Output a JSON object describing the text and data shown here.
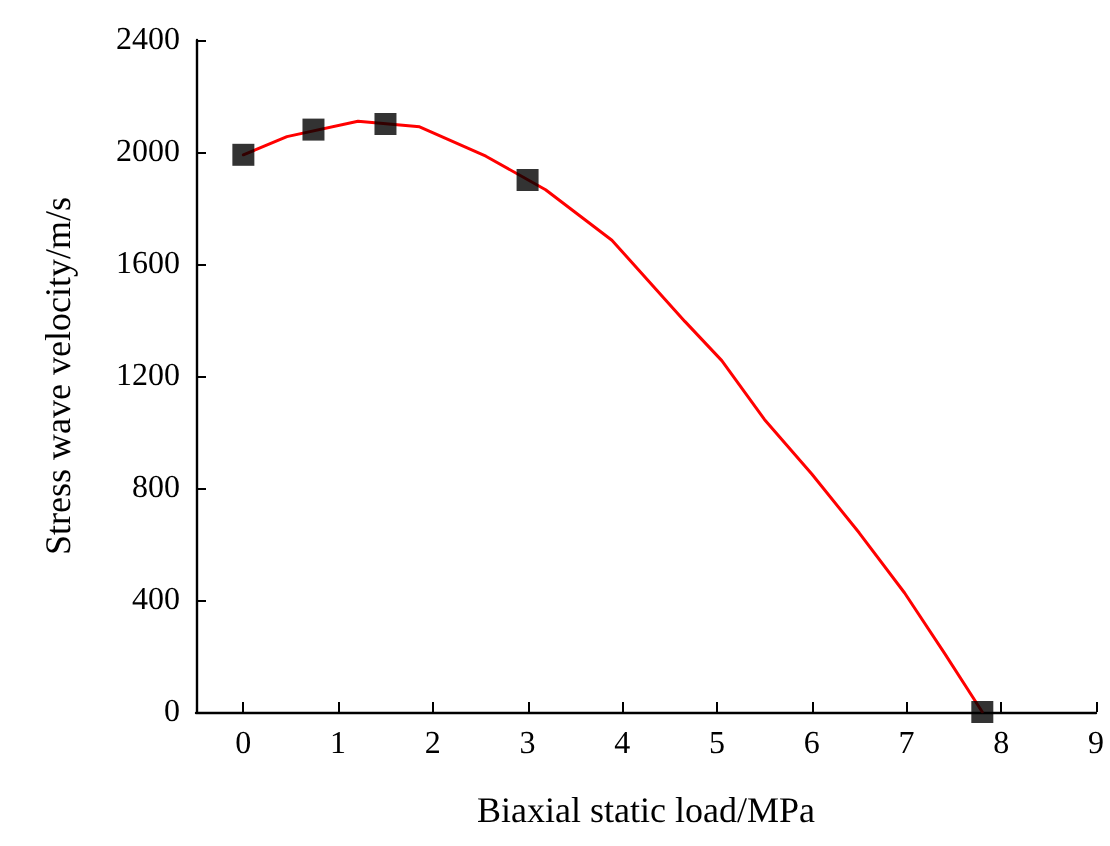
{
  "chart_data": {
    "type": "scatter",
    "xlabel": "Biaxial static load/MPa",
    "ylabel": "Stress wave velocity/m/s",
    "xlim": [
      -0.5,
      9
    ],
    "xticks": [
      0,
      1,
      2,
      3,
      4,
      5,
      6,
      7,
      8,
      9
    ],
    "ylim": [
      0,
      2400
    ],
    "yticks": [
      0,
      400,
      800,
      1200,
      1600,
      2000,
      2400
    ],
    "grid": false,
    "series": [
      {
        "color": "#000000",
        "marker": "square",
        "x": [
          0,
          0.74,
          1.5,
          3,
          7.8
        ],
        "values": [
          1990,
          2080,
          2100,
          1900,
          0
        ]
      },
      {
        "type": "line",
        "color": "#ff0000",
        "marker": "none",
        "line_style": "solid",
        "x": [
          0,
          0.46,
          1.21,
          1.86,
          2.56,
          3.19,
          3.89,
          4.66,
          5.05,
          5.5,
          6,
          6.5,
          6.98,
          7.4,
          7.8
        ],
        "values": [
          1990,
          2055,
          2110,
          2090,
          1985,
          1865,
          1685,
          1395,
          1255,
          1045,
          850,
          640,
          425,
          210,
          0
        ]
      }
    ]
  }
}
